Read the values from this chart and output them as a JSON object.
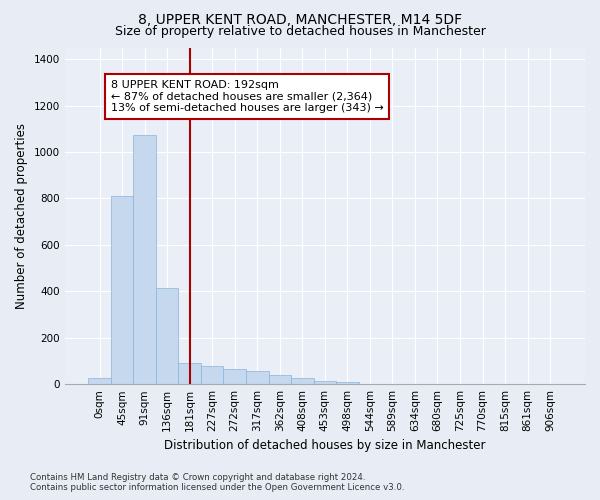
{
  "title_line1": "8, UPPER KENT ROAD, MANCHESTER, M14 5DF",
  "title_line2": "Size of property relative to detached houses in Manchester",
  "xlabel": "Distribution of detached houses by size in Manchester",
  "ylabel": "Number of detached properties",
  "footnote": "Contains HM Land Registry data © Crown copyright and database right 2024.\nContains public sector information licensed under the Open Government Licence v3.0.",
  "bar_labels": [
    "0sqm",
    "45sqm",
    "91sqm",
    "136sqm",
    "181sqm",
    "227sqm",
    "272sqm",
    "317sqm",
    "362sqm",
    "408sqm",
    "453sqm",
    "498sqm",
    "544sqm",
    "589sqm",
    "634sqm",
    "680sqm",
    "725sqm",
    "770sqm",
    "815sqm",
    "861sqm",
    "906sqm"
  ],
  "bar_values": [
    25,
    810,
    1075,
    415,
    90,
    80,
    65,
    55,
    40,
    25,
    15,
    10,
    0,
    0,
    0,
    0,
    0,
    0,
    0,
    0,
    0
  ],
  "bar_color": "#c5d8ee",
  "bar_edge_color": "#8ab4d8",
  "vline_x": 4.0,
  "vline_color": "#aa0000",
  "ylim": [
    0,
    1450
  ],
  "yticks": [
    0,
    200,
    400,
    600,
    800,
    1000,
    1200,
    1400
  ],
  "annotation_box_text": "8 UPPER KENT ROAD: 192sqm\n← 87% of detached houses are smaller (2,364)\n13% of semi-detached houses are larger (343) →",
  "bg_color": "#e8edf5",
  "plot_bg_color": "#eaeff7",
  "grid_color": "#ffffff",
  "title_fontsize": 10,
  "subtitle_fontsize": 9,
  "axis_label_fontsize": 8.5,
  "tick_fontsize": 7.5,
  "annotation_fontsize": 8
}
